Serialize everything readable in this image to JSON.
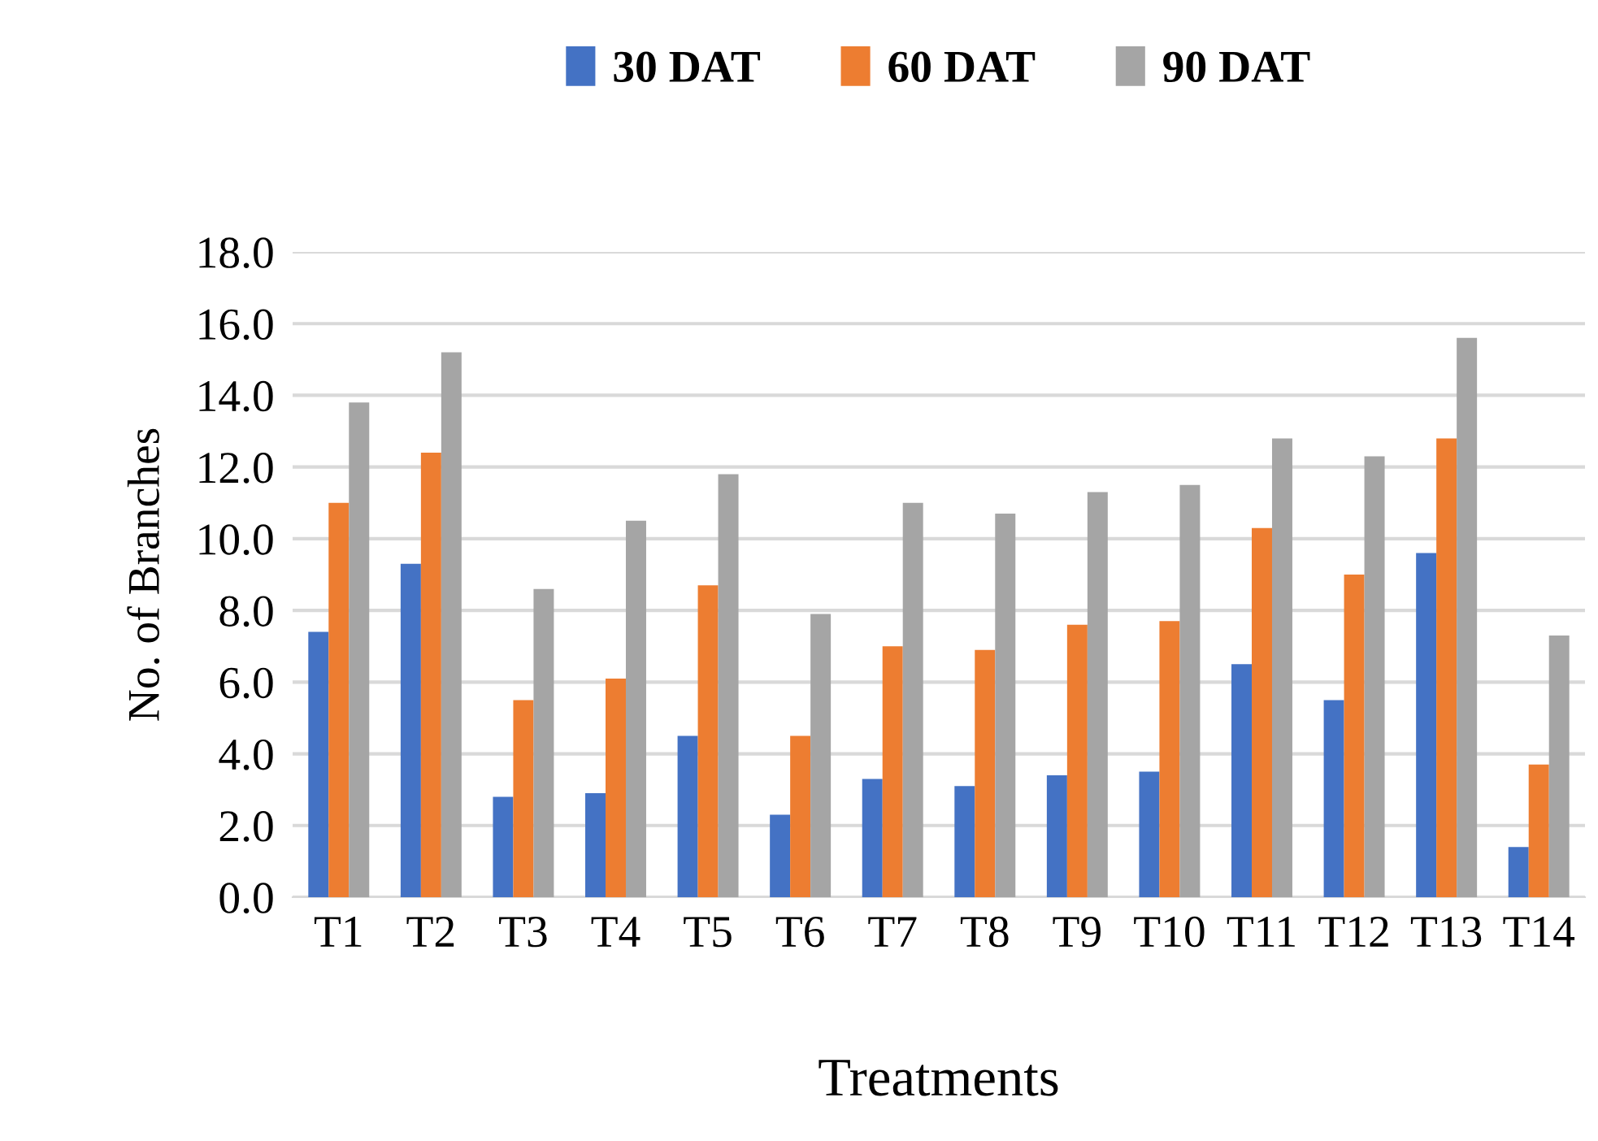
{
  "chart_data": {
    "type": "bar",
    "xlabel": "Treatments",
    "ylabel": "No. of Branches",
    "categories": [
      "T1",
      "T2",
      "T3",
      "T4",
      "T5",
      "T6",
      "T7",
      "T8",
      "T9",
      "T10",
      "T11",
      "T12",
      "T13",
      "T14"
    ],
    "series": [
      {
        "name": "30 DAT",
        "color": "#4472c4",
        "values": [
          7.4,
          9.3,
          2.8,
          2.9,
          4.5,
          2.3,
          3.3,
          3.1,
          3.4,
          3.5,
          6.5,
          5.5,
          9.6,
          1.4
        ]
      },
      {
        "name": "60 DAT",
        "color": "#ed7d31",
        "values": [
          11.0,
          12.4,
          5.5,
          6.1,
          8.7,
          4.5,
          7.0,
          6.9,
          7.6,
          7.7,
          10.3,
          9.0,
          12.8,
          3.7
        ]
      },
      {
        "name": "90 DAT",
        "color": "#a5a5a5",
        "values": [
          13.8,
          15.2,
          8.6,
          10.5,
          11.8,
          7.9,
          11.0,
          10.7,
          11.3,
          11.5,
          12.8,
          12.3,
          15.6,
          7.3
        ]
      }
    ],
    "ylim": [
      0,
      18
    ],
    "yticks": [
      {
        "value": 0,
        "label": "0.0"
      },
      {
        "value": 2,
        "label": "2.0"
      },
      {
        "value": 4,
        "label": "4.0"
      },
      {
        "value": 6,
        "label": "6.0"
      },
      {
        "value": 8,
        "label": "8.0"
      },
      {
        "value": 10,
        "label": "10.0"
      },
      {
        "value": 12,
        "label": "12.0"
      },
      {
        "value": 14,
        "label": "14.0"
      },
      {
        "value": 16,
        "label": "16.0"
      },
      {
        "value": 18,
        "label": "18.0"
      }
    ],
    "grid": "y",
    "legend": "top"
  }
}
